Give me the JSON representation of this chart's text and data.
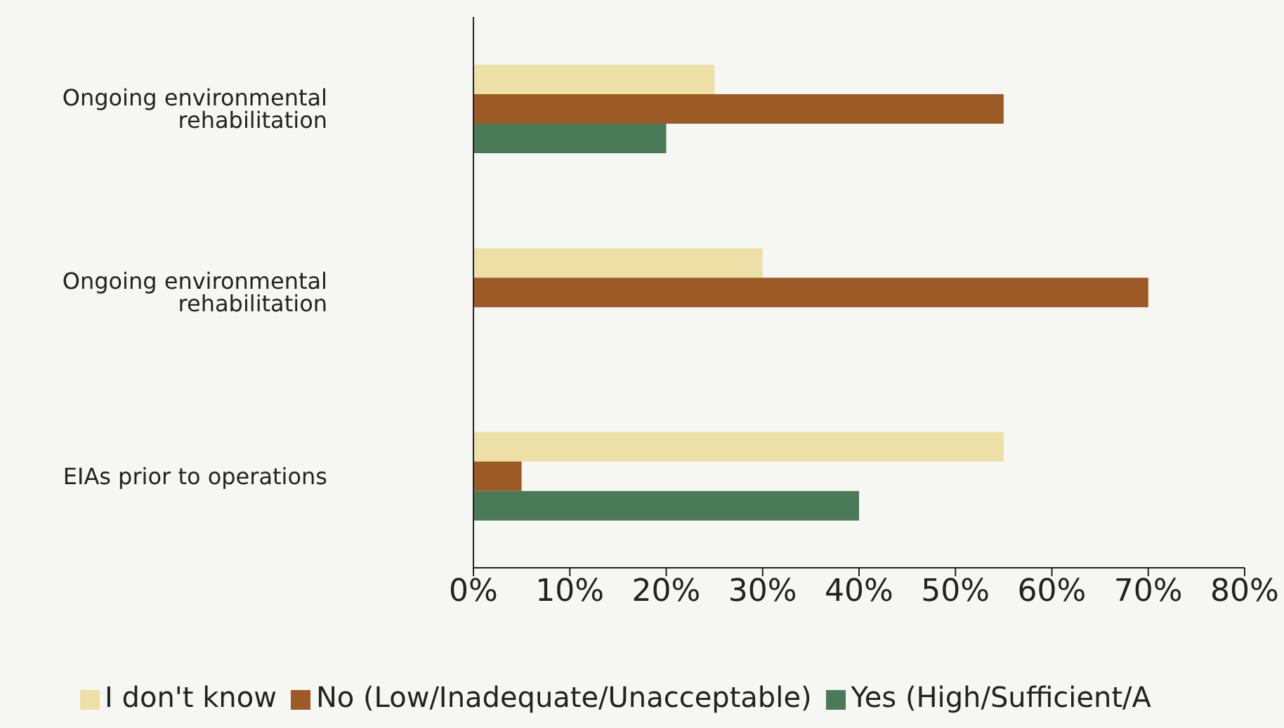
{
  "chart_data": {
    "type": "bar",
    "orientation": "horizontal",
    "categories": [
      "Ongoing environmental rehabilitation",
      "Ongoing environmental rehabilitation",
      "EIAs prior to operations"
    ],
    "series": [
      {
        "name": "I don't know",
        "color": "#ede0a6",
        "values": [
          25,
          30,
          55
        ]
      },
      {
        "name": "No (Low/Inadequate/Unacceptable)",
        "color": "#9c5a26",
        "values": [
          55,
          70,
          5
        ]
      },
      {
        "name": "Yes (High/Sufficient/A",
        "color": "#4a7a57",
        "values": [
          20,
          null,
          40
        ]
      }
    ],
    "xlim": [
      0,
      80
    ],
    "xticks": [
      {
        "value": 0,
        "label": "0%"
      },
      {
        "value": 10,
        "label": "10%"
      },
      {
        "value": 20,
        "label": "20%"
      },
      {
        "value": 30,
        "label": "30%"
      },
      {
        "value": 40,
        "label": "40%"
      },
      {
        "value": 50,
        "label": "50%"
      },
      {
        "value": 60,
        "label": "60%"
      },
      {
        "value": 70,
        "label": "70%"
      },
      {
        "value": 80,
        "label": "80%"
      }
    ],
    "grid": false,
    "legend": "bottom"
  }
}
